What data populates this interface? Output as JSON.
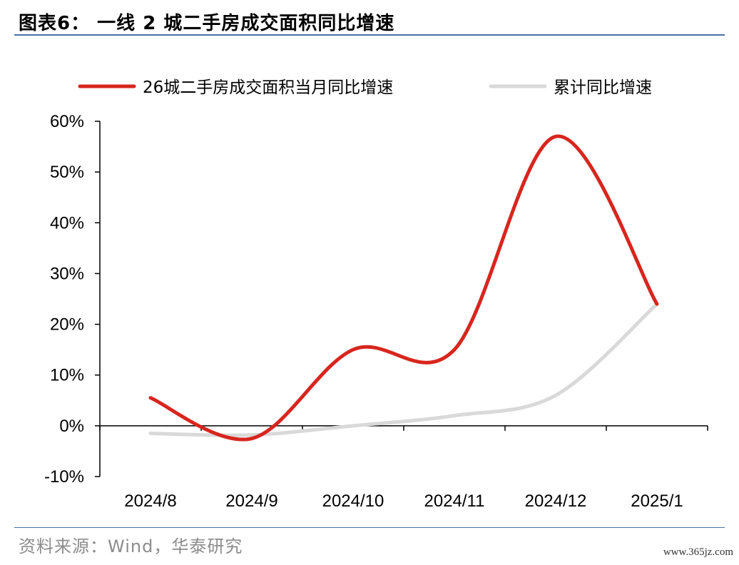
{
  "header": {
    "title": "图表6： 一线 2 城二手房成交面积同比增速"
  },
  "footer": {
    "source": "资料来源：Wind，华泰研究",
    "watermark": "www.365jz.com"
  },
  "chart_data": {
    "type": "line",
    "title": "",
    "xlabel": "",
    "ylabel": "",
    "categories": [
      "2024/8",
      "2024/9",
      "2024/10",
      "2024/11",
      "2024/12",
      "2025/1"
    ],
    "ylim": [
      -10,
      60
    ],
    "yticks": [
      -10,
      0,
      10,
      20,
      30,
      40,
      50,
      60
    ],
    "ytick_labels": [
      "-10%",
      "0%",
      "10%",
      "20%",
      "30%",
      "40%",
      "50%",
      "60%"
    ],
    "grid": false,
    "legend_position": "top",
    "series": [
      {
        "name": "26城二手房成交面积当月同比增速",
        "color": "#d7261e",
        "values": [
          5.5,
          -2.5,
          15,
          15,
          57,
          24
        ]
      },
      {
        "name": "累计同比增速",
        "color": "#d9d9d9",
        "values": [
          -1.5,
          -1.8,
          0,
          2,
          6,
          24
        ]
      }
    ]
  }
}
